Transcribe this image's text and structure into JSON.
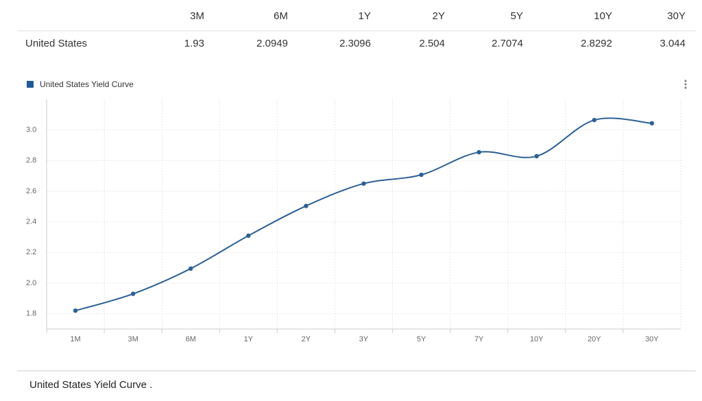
{
  "table": {
    "header": [
      "3M",
      "6M",
      "1Y",
      "2Y",
      "5Y",
      "10Y",
      "30Y"
    ],
    "rows": [
      [
        "United States",
        1.93,
        2.0949,
        2.3096,
        2.504,
        2.7074,
        2.8292,
        3.044
      ]
    ]
  },
  "chart_data": {
    "type": "line",
    "categories": [
      "1M",
      "3M",
      "6M",
      "1Y",
      "2Y",
      "3Y",
      "5Y",
      "7Y",
      "10Y",
      "20Y",
      "30Y"
    ],
    "series": [
      {
        "name": "United States Yield Curve",
        "color": "#2c5f94",
        "values": [
          1.82,
          1.93,
          2.0949,
          2.3096,
          2.504,
          2.65,
          2.7074,
          2.855,
          2.8292,
          3.065,
          3.044
        ]
      }
    ],
    "ylim": [
      1.7,
      3.2
    ],
    "yticks": [
      1.8,
      {
        "value": 2,
        "label": "2.0"
      },
      2.2,
      2.4,
      2.6,
      2.8,
      {
        "value": 3,
        "label": "3.0"
      }
    ],
    "grid": true,
    "legend": "top-left"
  },
  "footer": "United States Yield Curve ."
}
